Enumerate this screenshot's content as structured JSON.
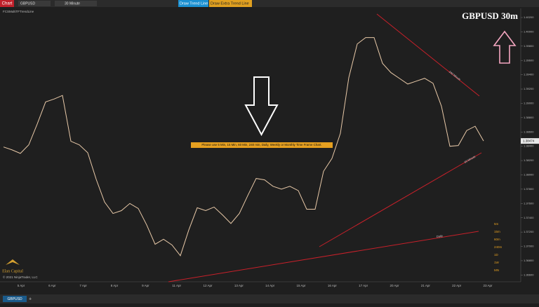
{
  "toolbar": {
    "chart_tab": "Chart",
    "instrument": "GBPUSD",
    "interval": "30 Minute",
    "draw_trend_line": "Draw Trend Line",
    "draw_extra_trend_line": "Draw Extra Trend Line"
  },
  "indicator_label": "FCSMultiTFTrendLine",
  "chart_data": {
    "type": "line",
    "title": "GBPUSD 30m",
    "annotation": "Please use 5 Min, 15 Min, 60 Min, 240 min, Daily, Weekly or Monthly Time Frame Chart.",
    "trend_line_labels": [
      "240 Minute",
      "60 Minute",
      "Daily"
    ],
    "timeframe_labels": [
      "5m",
      "15m",
      "60m",
      "240m",
      "1D",
      "1W",
      "MN"
    ],
    "series": [
      {
        "name": "GBPUSD",
        "color": "#e8c9a8",
        "values": [
          1.3839,
          1.3835,
          1.383,
          1.3842,
          1.3871,
          1.3902,
          1.3906,
          1.3911,
          1.3847,
          1.3842,
          1.3831,
          1.3794,
          1.3762,
          1.3746,
          1.375,
          1.376,
          1.3753,
          1.373,
          1.3703,
          1.371,
          1.3702,
          1.3687,
          1.3723,
          1.3754,
          1.375,
          1.3755,
          1.3744,
          1.3732,
          1.3746,
          1.3771,
          1.3795,
          1.3793,
          1.3784,
          1.378,
          1.3784,
          1.3778,
          1.3752,
          1.3752,
          1.3805,
          1.3823,
          1.3858,
          1.3936,
          1.3983,
          1.3992,
          1.3992,
          1.3956,
          1.3943,
          1.3935,
          1.3927,
          1.3931,
          1.3935,
          1.3928,
          1.3896,
          1.384,
          1.3841,
          1.3862,
          1.3868,
          1.38474
        ]
      }
    ],
    "last_price": {
      "value": 1.38474,
      "label": "1.38474"
    },
    "date_labels": [
      "5 Apr",
      "6 Apr",
      "7 Apr",
      "8 Apr",
      "9 Apr",
      "11 Apr",
      "12 Apr",
      "13 Apr",
      "14 Apr",
      "15 Apr",
      "16 Apr",
      "17 Apr",
      "20 Apr",
      "21 Apr",
      "22 Apr",
      "23 Apr"
    ],
    "ylim": [
      1.36525,
      1.402
    ],
    "yticks": [
      {
        "value": 1.366,
        "label": "1.36600"
      },
      {
        "value": 1.368,
        "label": "1.36800"
      },
      {
        "value": 1.37,
        "label": "1.37000"
      },
      {
        "value": 1.372,
        "label": "1.37200"
      },
      {
        "value": 1.374,
        "label": "1.37400"
      },
      {
        "value": 1.376,
        "label": "1.37600"
      },
      {
        "value": 1.378,
        "label": "1.37800"
      },
      {
        "value": 1.38,
        "label": "1.38000"
      },
      {
        "value": 1.382,
        "label": "1.38200"
      },
      {
        "value": 1.384,
        "label": "1.38400"
      },
      {
        "value": 1.386,
        "label": "1.38600"
      },
      {
        "value": 1.388,
        "label": "1.38800"
      },
      {
        "value": 1.39,
        "label": "1.39000"
      },
      {
        "value": 1.392,
        "label": "1.39200"
      },
      {
        "value": 1.394,
        "label": "1.39400"
      },
      {
        "value": 1.396,
        "label": "1.39600"
      },
      {
        "value": 1.398,
        "label": "1.39800"
      },
      {
        "value": 1.4,
        "label": "1.40000"
      },
      {
        "value": 1.402,
        "label": "1.40200"
      }
    ],
    "grid": false
  },
  "logo": "Elan Capital",
  "copyright": "© 2021 NinjaTrader, LLC",
  "bottom_tab": "GBPUSD"
}
